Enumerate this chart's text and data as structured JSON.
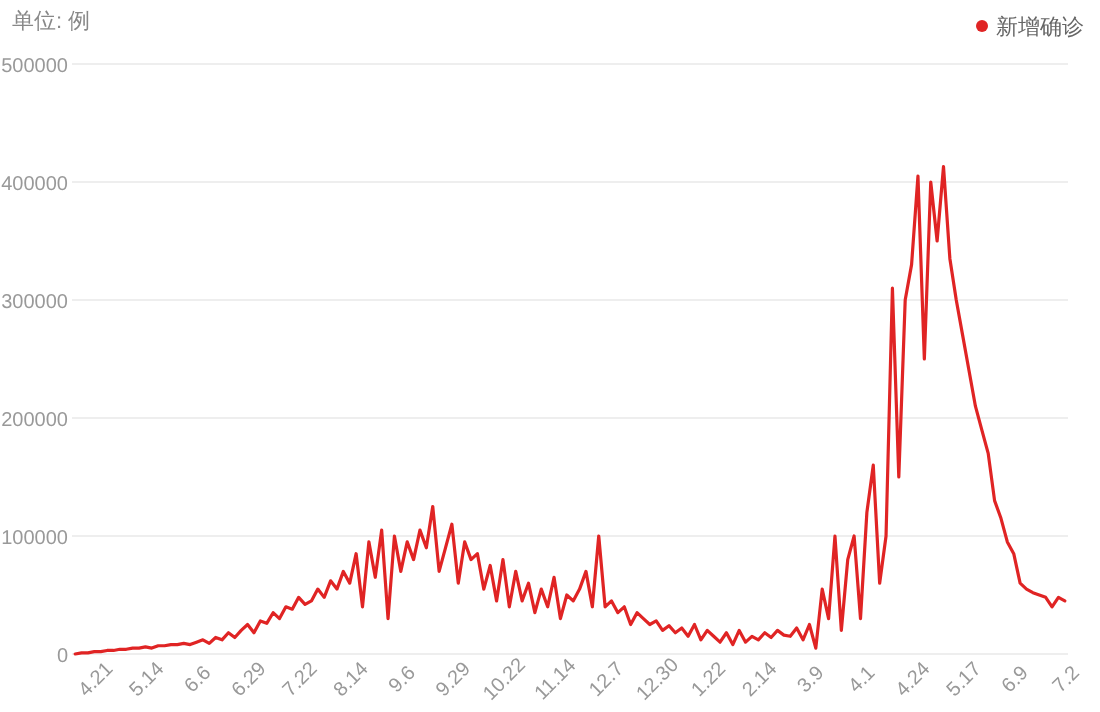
{
  "chart_data": {
    "type": "line",
    "ylabel": "单位: 例",
    "categories": [
      null,
      null,
      null,
      "4.21",
      null,
      null,
      null,
      null,
      null,
      null,
      null,
      "5.14",
      null,
      null,
      null,
      null,
      null,
      null,
      null,
      "6.6",
      null,
      null,
      null,
      null,
      null,
      null,
      null,
      "6.29",
      null,
      null,
      null,
      null,
      null,
      null,
      null,
      "7.22",
      null,
      null,
      null,
      null,
      null,
      null,
      null,
      "8.14",
      null,
      null,
      null,
      null,
      null,
      null,
      null,
      "9.6",
      null,
      null,
      null,
      null,
      null,
      null,
      null,
      "9.29",
      null,
      null,
      null,
      null,
      null,
      null,
      null,
      "10.22",
      null,
      null,
      null,
      null,
      null,
      null,
      null,
      "11.14",
      null,
      null,
      null,
      null,
      null,
      null,
      null,
      "12.7",
      null,
      null,
      null,
      null,
      null,
      null,
      null,
      "12.30",
      null,
      null,
      null,
      null,
      null,
      null,
      null,
      "1.22",
      null,
      null,
      null,
      null,
      null,
      null,
      null,
      "2.14",
      null,
      null,
      null,
      null,
      null,
      null,
      null,
      "3.9",
      null,
      null,
      null,
      null,
      null,
      null,
      null,
      "4.1",
      null,
      null,
      null,
      null,
      null,
      null,
      null,
      "4.24",
      null,
      null,
      null,
      null,
      null,
      null,
      null,
      "5.17",
      null,
      null,
      null,
      null,
      null,
      null,
      null,
      "6.9",
      null,
      null,
      null,
      null,
      null,
      null,
      null,
      "7.2"
    ],
    "series": [
      {
        "name": "新增确诊",
        "color": "#e02424",
        "values": [
          0,
          1000,
          1000,
          2000,
          2000,
          3000,
          3000,
          4000,
          4000,
          5000,
          5000,
          6000,
          5000,
          7000,
          7000,
          8000,
          8000,
          9000,
          8000,
          10000,
          12000,
          9000,
          14000,
          12000,
          18000,
          14000,
          20000,
          25000,
          18000,
          28000,
          26000,
          35000,
          30000,
          40000,
          38000,
          48000,
          42000,
          45000,
          55000,
          48000,
          62000,
          55000,
          70000,
          60000,
          85000,
          40000,
          95000,
          65000,
          105000,
          30000,
          100000,
          70000,
          95000,
          80000,
          105000,
          90000,
          125000,
          70000,
          90000,
          110000,
          60000,
          95000,
          80000,
          85000,
          55000,
          75000,
          45000,
          80000,
          40000,
          70000,
          45000,
          60000,
          35000,
          55000,
          40000,
          65000,
          30000,
          50000,
          45000,
          55000,
          70000,
          40000,
          100000,
          40000,
          45000,
          35000,
          40000,
          25000,
          35000,
          30000,
          25000,
          28000,
          20000,
          24000,
          18000,
          22000,
          15000,
          25000,
          12000,
          20000,
          15000,
          10000,
          18000,
          8000,
          20000,
          10000,
          15000,
          12000,
          18000,
          14000,
          20000,
          16000,
          15000,
          22000,
          12000,
          25000,
          5000,
          55000,
          30000,
          100000,
          20000,
          80000,
          100000,
          30000,
          120000,
          160000,
          60000,
          100000,
          310000,
          150000,
          300000,
          330000,
          405000,
          250000,
          400000,
          350000,
          413000,
          335000,
          300000,
          270000,
          240000,
          210000,
          190000,
          170000,
          130000,
          115000,
          95000,
          85000,
          60000,
          55000,
          52000,
          50000,
          48000,
          40000,
          48000,
          45000
        ]
      }
    ],
    "ylim": [
      0,
      500000
    ],
    "yticks": [
      0,
      100000,
      200000,
      300000,
      400000,
      500000
    ],
    "grid": "y",
    "legend": "top right",
    "marker": "none",
    "line_style": "solid"
  }
}
